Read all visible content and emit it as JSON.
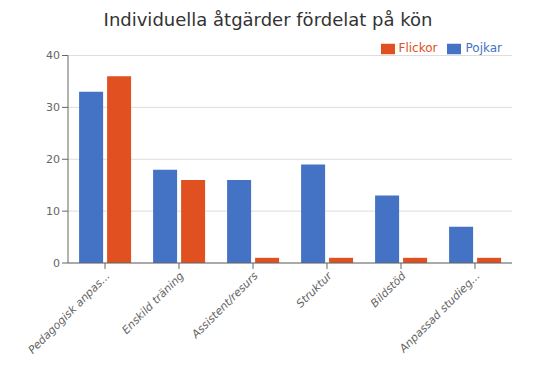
{
  "chart_data": {
    "type": "bar",
    "title": "Individuella åtgärder fördelat på kön",
    "categories": [
      "Pedagogisk anpas...",
      "Enskild träning",
      "Assistent/resurs",
      "Struktur",
      "Bildstöd",
      "Anpassad studieg..."
    ],
    "series": [
      {
        "name": "Pojkar",
        "color": "#4472C4",
        "values": [
          33,
          18,
          16,
          19,
          13,
          7
        ]
      },
      {
        "name": "Flickor",
        "color": "#E05020",
        "values": [
          36,
          16,
          1,
          1,
          1,
          1
        ]
      }
    ],
    "ylim": [
      0,
      40
    ],
    "yticks": [
      0,
      10,
      20,
      30,
      40
    ],
    "grid": true,
    "legend": "upper right"
  }
}
